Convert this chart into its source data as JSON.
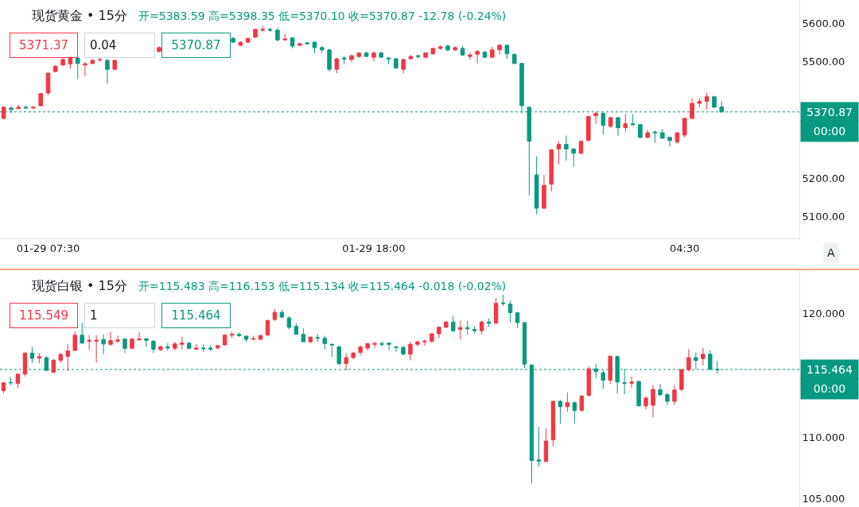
{
  "chart_data": [
    {
      "type": "candlestick",
      "title": "现货黄金 • 15分",
      "subtitle": "开=5383.59 高=5398.35 低=5370.10 收=5370.87 -12.78 (-0.24%)",
      "categories": [
        null,
        null,
        null,
        null,
        null,
        null,
        "01-29 07:30",
        null,
        null,
        null,
        null,
        null,
        null,
        null,
        null,
        null,
        null,
        null,
        null,
        null,
        null,
        null,
        null,
        null,
        null,
        null,
        null,
        null,
        null,
        null,
        null,
        null,
        null,
        null,
        null,
        null,
        null,
        null,
        null,
        null,
        null,
        null,
        null,
        null,
        null,
        null,
        null,
        null,
        null,
        null,
        "01-29 18:00",
        null,
        null,
        null,
        null,
        null,
        null,
        null,
        null,
        null,
        null,
        null,
        null,
        null,
        null,
        null,
        null,
        null,
        null,
        null,
        null,
        null,
        null,
        null,
        null,
        null,
        null,
        null,
        null,
        null,
        null,
        null,
        null,
        null,
        null,
        null,
        null,
        null,
        null,
        null,
        null,
        null,
        "04:30",
        null,
        null,
        null,
        null,
        null,
        null,
        null,
        null,
        null,
        null,
        null,
        null,
        null,
        null,
        null
      ],
      "ohlc": [
        [
          5354,
          5385,
          5352,
          5383
        ],
        [
          5381,
          5387,
          5368,
          5377
        ],
        [
          5379,
          5389,
          5379,
          5383
        ],
        [
          5383,
          5387,
          5379,
          5381
        ],
        [
          5381,
          5385,
          5379,
          5383
        ],
        [
          5387,
          5420,
          5385,
          5418
        ],
        [
          5420,
          5473,
          5414,
          5471
        ],
        [
          5475,
          5492,
          5473,
          5489
        ],
        [
          5492,
          5510,
          5490,
          5506
        ],
        [
          5495,
          5515,
          5483,
          5510
        ],
        [
          5510,
          5515,
          5455,
          5496
        ],
        [
          5492,
          5500,
          5463,
          5495
        ],
        [
          5496,
          5508,
          5494,
          5504
        ],
        [
          5505,
          5510,
          5500,
          5506
        ],
        [
          5504,
          5508,
          5444,
          5481
        ],
        [
          5481,
          5506,
          5479,
          5504
        ],
        null,
        null,
        null,
        null,
        null,
        [
          5527,
          5540,
          5524,
          5537
        ],
        null,
        null,
        null,
        null,
        null,
        null,
        null,
        null,
        null,
        [
          5561,
          5565,
          5549,
          5551
        ],
        [
          5543,
          5553,
          5541,
          5551
        ],
        [
          5551,
          5562,
          5549,
          5561
        ],
        [
          5564,
          5586,
          5562,
          5584
        ],
        [
          5582,
          5592,
          5578,
          5584
        ],
        [
          5584,
          5588,
          5578,
          5582
        ],
        [
          5582,
          5588,
          5553,
          5557
        ],
        [
          5557,
          5572,
          5555,
          5559
        ],
        [
          5562,
          5564,
          5535,
          5541
        ],
        [
          5543,
          5550,
          5541,
          5547
        ],
        [
          5549,
          5551,
          5545,
          5547
        ],
        [
          5551,
          5553,
          5523,
          5537
        ],
        [
          5537,
          5541,
          5525,
          5531
        ],
        [
          5531,
          5533,
          5475,
          5481
        ],
        [
          5481,
          5510,
          5471,
          5508
        ],
        [
          5510,
          5516,
          5494,
          5508
        ],
        [
          5506,
          5519,
          5500,
          5516
        ],
        [
          5514,
          5525,
          5510,
          5523
        ],
        [
          5523,
          5527,
          5512,
          5514
        ],
        [
          5512,
          5527,
          5502,
          5523
        ],
        [
          5523,
          5527,
          5510,
          5512
        ],
        [
          5510,
          5512,
          5494,
          5508
        ],
        [
          5508,
          5510,
          5484,
          5484
        ],
        [
          5481,
          5510,
          5471,
          5506
        ],
        [
          5508,
          5518,
          5506,
          5514
        ],
        [
          5516,
          5519,
          5508,
          5514
        ],
        [
          5512,
          5525,
          5510,
          5523
        ],
        [
          5521,
          5537,
          5519,
          5535
        ],
        [
          5535,
          5543,
          5531,
          5539
        ],
        [
          5541,
          5545,
          5527,
          5531
        ],
        [
          5531,
          5541,
          5529,
          5537
        ],
        [
          5535,
          5541,
          5516,
          5518
        ],
        [
          5514,
          5525,
          5506,
          5518
        ],
        [
          5520,
          5531,
          5496,
          5527
        ],
        [
          5525,
          5529,
          5510,
          5512
        ],
        [
          5512,
          5539,
          5510,
          5531
        ],
        [
          5531,
          5547,
          5519,
          5543
        ],
        [
          5543,
          5545,
          5508,
          5521
        ],
        [
          5519,
          5523,
          5494,
          5496
        ],
        [
          5496,
          5498,
          5367,
          5387
        ],
        [
          5383,
          5385,
          5155,
          5295
        ],
        [
          5208,
          5256,
          5106,
          5122
        ],
        [
          5122,
          5208,
          5120,
          5181
        ],
        [
          5184,
          5275,
          5165,
          5273
        ],
        [
          5275,
          5295,
          5235,
          5287
        ],
        [
          5287,
          5310,
          5245,
          5275
        ],
        [
          5275,
          5277,
          5229,
          5264
        ],
        [
          5264,
          5295,
          5262,
          5295
        ],
        [
          5297,
          5361,
          5295,
          5359
        ],
        [
          5361,
          5371,
          5340,
          5367
        ],
        [
          5367,
          5371,
          5313,
          5336
        ],
        [
          5334,
          5358,
          5330,
          5356
        ],
        [
          5356,
          5358,
          5309,
          5330
        ],
        [
          5330,
          5365,
          5319,
          5340
        ],
        [
          5340,
          5365,
          5336,
          5338
        ],
        [
          5338,
          5340,
          5303,
          5305
        ],
        [
          5305,
          5325,
          5303,
          5317
        ],
        [
          5319,
          5323,
          5291,
          5317
        ],
        [
          5317,
          5327,
          5301,
          5303
        ],
        [
          5305,
          5307,
          5282,
          5297
        ],
        [
          5293,
          5317,
          5289,
          5317
        ],
        [
          5311,
          5356,
          5305,
          5354
        ],
        [
          5354,
          5406,
          5354,
          5393
        ],
        [
          5393,
          5406,
          5383,
          5398
        ],
        [
          5398,
          5420,
          5377,
          5410
        ],
        [
          5410,
          5412,
          5381,
          5383
        ],
        [
          5383.59,
          5398.35,
          5370.1,
          5370.87
        ],
        null,
        null,
        null,
        null,
        null,
        null,
        null,
        null,
        null,
        null
      ],
      "ylim": [
        5044,
        5660
      ],
      "yticks": [
        {
          "value": 5100,
          "label": "5100.00"
        },
        {
          "value": 5200,
          "label": "5200.00"
        },
        {
          "value": 5500,
          "label": "5500.00"
        },
        {
          "value": 5600,
          "label": "5600.00"
        }
      ],
      "ref_lines": [
        {
          "axis": "y",
          "value": 5370.87,
          "color": "#089981",
          "line_style": "dotted"
        }
      ],
      "annotations": [
        "5371.37",
        "0.04",
        "5370.87",
        "5370.87",
        "00:00",
        "A"
      ]
    },
    {
      "type": "candlestick",
      "title": "现货白银 • 15分",
      "subtitle": "开=115.483 高=116.153 低=115.134 收=115.464 -0.018 (-0.02%)",
      "categories": [
        null,
        null,
        null,
        null,
        null,
        null,
        null,
        null,
        null,
        null,
        null,
        null,
        null,
        null,
        null,
        null,
        null,
        null,
        null,
        null,
        null,
        null,
        null,
        null,
        null,
        null,
        null,
        null,
        null,
        null,
        null,
        null,
        null,
        null,
        null,
        null,
        null,
        null,
        null,
        null,
        null,
        null,
        null,
        null,
        null,
        null,
        null,
        null,
        null,
        null,
        null,
        null,
        null,
        null,
        null,
        null,
        null,
        null,
        null,
        null,
        null,
        null,
        null,
        null,
        null,
        null,
        null,
        null,
        null,
        null,
        null,
        null,
        null,
        null,
        null,
        null,
        null,
        null,
        null,
        null,
        null,
        null,
        null,
        null,
        null,
        null,
        null,
        null,
        null,
        null,
        null,
        null,
        null,
        null,
        null,
        null,
        null,
        null,
        null,
        null,
        null,
        null,
        null,
        null,
        null,
        null,
        null,
        null,
        null,
        null,
        null,
        null
      ],
      "ohlc": [
        [
          113.75,
          114.45,
          113.55,
          114.39
        ],
        [
          114.42,
          114.84,
          114.2,
          114.39
        ],
        [
          114.33,
          115.12,
          113.95,
          115.09
        ],
        [
          115.09,
          116.85,
          114.9,
          116.79
        ],
        [
          116.79,
          117.3,
          116.0,
          116.36
        ],
        [
          116.4,
          116.79,
          115.97,
          116.5
        ],
        [
          116.42,
          116.55,
          115.3,
          115.4
        ],
        [
          115.25,
          116.3,
          115.14,
          116.21
        ],
        [
          116.21,
          116.8,
          116.0,
          116.68
        ],
        [
          116.53,
          117.53,
          115.35,
          116.96
        ],
        [
          117.0,
          118.56,
          116.96,
          118.24
        ],
        [
          118.24,
          119.25,
          117.5,
          117.6
        ],
        [
          117.75,
          118.24,
          117.07,
          117.82
        ],
        [
          117.75,
          118.24,
          116.04,
          117.82
        ],
        [
          117.88,
          118.3,
          116.7,
          117.53
        ],
        [
          117.5,
          118.5,
          117.4,
          117.8
        ],
        [
          117.75,
          118.2,
          117.6,
          117.85
        ],
        [
          117.92,
          118.0,
          116.8,
          117.18
        ],
        [
          117.18,
          118.0,
          117.1,
          117.92
        ],
        [
          117.85,
          118.48,
          117.8,
          117.92
        ],
        [
          117.95,
          118.0,
          117.3,
          117.82
        ],
        [
          117.75,
          117.85,
          116.8,
          117.1
        ],
        [
          117.07,
          117.4,
          116.95,
          117.3
        ],
        [
          117.3,
          117.6,
          117.0,
          117.2
        ],
        [
          117.18,
          117.7,
          117.0,
          117.53
        ],
        [
          117.5,
          118.1,
          117.1,
          117.6
        ],
        [
          117.6,
          117.7,
          117.1,
          117.18
        ],
        [
          117.1,
          117.5,
          117.05,
          117.2
        ],
        [
          117.2,
          117.5,
          116.9,
          117.15
        ],
        [
          117.2,
          117.45,
          116.95,
          117.12
        ],
        [
          117.2,
          117.4,
          117.1,
          117.4
        ],
        [
          117.45,
          118.3,
          117.4,
          118.24
        ],
        [
          118.24,
          118.5,
          118.0,
          118.3
        ],
        [
          118.3,
          118.45,
          118.1,
          118.2
        ],
        [
          118.16,
          118.2,
          117.7,
          117.9
        ],
        [
          117.9,
          118.2,
          117.85,
          117.95
        ],
        [
          117.9,
          118.3,
          117.85,
          118.2
        ],
        [
          118.24,
          119.5,
          118.2,
          119.42
        ],
        [
          119.5,
          120.34,
          119.4,
          120.08
        ],
        [
          120.08,
          120.3,
          119.6,
          119.7
        ],
        [
          119.63,
          119.8,
          118.7,
          118.87
        ],
        [
          118.95,
          119.2,
          118.3,
          118.3
        ],
        [
          118.3,
          118.8,
          117.7,
          117.71
        ],
        [
          117.71,
          118.1,
          117.6,
          118.09
        ],
        [
          118.05,
          118.3,
          117.7,
          118.0
        ],
        [
          118.0,
          118.2,
          117.1,
          117.56
        ],
        [
          117.5,
          117.55,
          116.5,
          117.45
        ],
        [
          117.3,
          117.35,
          115.8,
          115.95
        ],
        [
          115.95,
          116.8,
          115.4,
          116.42
        ],
        [
          116.42,
          116.9,
          116.3,
          116.8
        ],
        [
          116.85,
          117.4,
          116.6,
          117.28
        ],
        [
          117.2,
          117.6,
          117.0,
          117.56
        ],
        [
          117.5,
          117.7,
          117.2,
          117.56
        ],
        [
          117.56,
          117.75,
          117.3,
          117.5
        ],
        [
          117.6,
          117.65,
          117.0,
          117.5
        ],
        [
          117.3,
          117.35,
          116.9,
          117.25
        ],
        [
          117.25,
          117.4,
          116.6,
          116.72
        ],
        [
          116.7,
          117.7,
          116.2,
          117.5
        ],
        [
          117.5,
          117.8,
          117.3,
          117.7
        ],
        [
          117.7,
          117.9,
          117.4,
          117.75
        ],
        [
          117.75,
          118.4,
          117.6,
          118.35
        ],
        [
          118.35,
          118.9,
          118.0,
          118.88
        ],
        [
          118.88,
          119.4,
          118.8,
          119.3
        ],
        [
          119.3,
          119.8,
          118.5,
          118.6
        ],
        [
          118.7,
          119.4,
          117.9,
          118.85
        ],
        [
          118.85,
          119.4,
          118.3,
          118.75
        ],
        [
          118.7,
          119.0,
          118.4,
          118.6
        ],
        [
          118.6,
          119.4,
          118.3,
          119.3
        ],
        [
          119.3,
          119.6,
          118.9,
          119.2
        ],
        [
          119.2,
          121.24,
          119.15,
          120.81
        ],
        [
          120.85,
          121.52,
          120.6,
          120.8
        ],
        [
          120.75,
          121.05,
          119.25,
          120.06
        ],
        [
          120.06,
          120.1,
          118.82,
          119.25
        ],
        [
          119.25,
          119.3,
          115.57,
          115.89
        ],
        [
          115.83,
          115.89,
          106.26,
          108.11
        ],
        [
          108.15,
          110.82,
          107.6,
          108.05
        ],
        [
          108.03,
          110.69,
          107.95,
          109.68
        ],
        [
          109.78,
          112.93,
          109.25,
          112.89
        ],
        [
          112.89,
          113.0,
          111.07,
          112.46
        ],
        [
          112.46,
          113.6,
          112.06,
          112.78
        ],
        [
          112.78,
          112.9,
          111.1,
          112.14
        ],
        [
          112.14,
          113.4,
          112.1,
          113.32
        ],
        [
          113.37,
          115.7,
          113.3,
          115.52
        ],
        [
          115.52,
          115.9,
          114.75,
          115.3
        ],
        [
          115.2,
          115.4,
          113.9,
          114.6
        ],
        [
          114.6,
          116.6,
          114.29,
          116.53
        ],
        [
          116.5,
          116.6,
          113.54,
          114.45
        ],
        [
          114.4,
          115.52,
          113.47,
          114.35
        ],
        [
          114.35,
          114.9,
          114.0,
          114.45
        ],
        [
          114.5,
          114.55,
          112.5,
          112.52
        ],
        [
          112.52,
          113.3,
          112.25,
          113.15
        ],
        [
          112.57,
          114.2,
          111.6,
          113.86
        ],
        [
          113.83,
          114.3,
          113.3,
          113.43
        ],
        [
          113.43,
          113.6,
          112.6,
          112.89
        ],
        [
          112.89,
          114.2,
          112.6,
          113.8
        ],
        [
          113.85,
          115.55,
          113.7,
          115.45
        ],
        [
          115.45,
          117.11,
          115.3,
          116.42
        ],
        [
          116.42,
          116.85,
          115.5,
          116.2
        ],
        [
          116.35,
          117.2,
          115.8,
          116.7
        ],
        [
          116.7,
          117.0,
          115.4,
          115.48
        ],
        [
          115.483,
          116.153,
          115.134,
          115.464
        ],
        null,
        null,
        null,
        null,
        null,
        null,
        null,
        null,
        null,
        null,
        null
      ],
      "ylim": [
        104.35,
        123.49
      ],
      "yticks": [
        {
          "value": 105,
          "label": "105.000"
        },
        {
          "value": 110,
          "label": "110.000"
        },
        {
          "value": 120,
          "label": "120.000"
        }
      ],
      "tick_labels": "y",
      "ref_lines": [
        {
          "axis": "y",
          "value": 115.464,
          "color": "#089981",
          "line_style": "dotted"
        }
      ],
      "annotations": [
        "115.549",
        "1",
        "115.464",
        "115.464",
        "00:00"
      ]
    }
  ]
}
